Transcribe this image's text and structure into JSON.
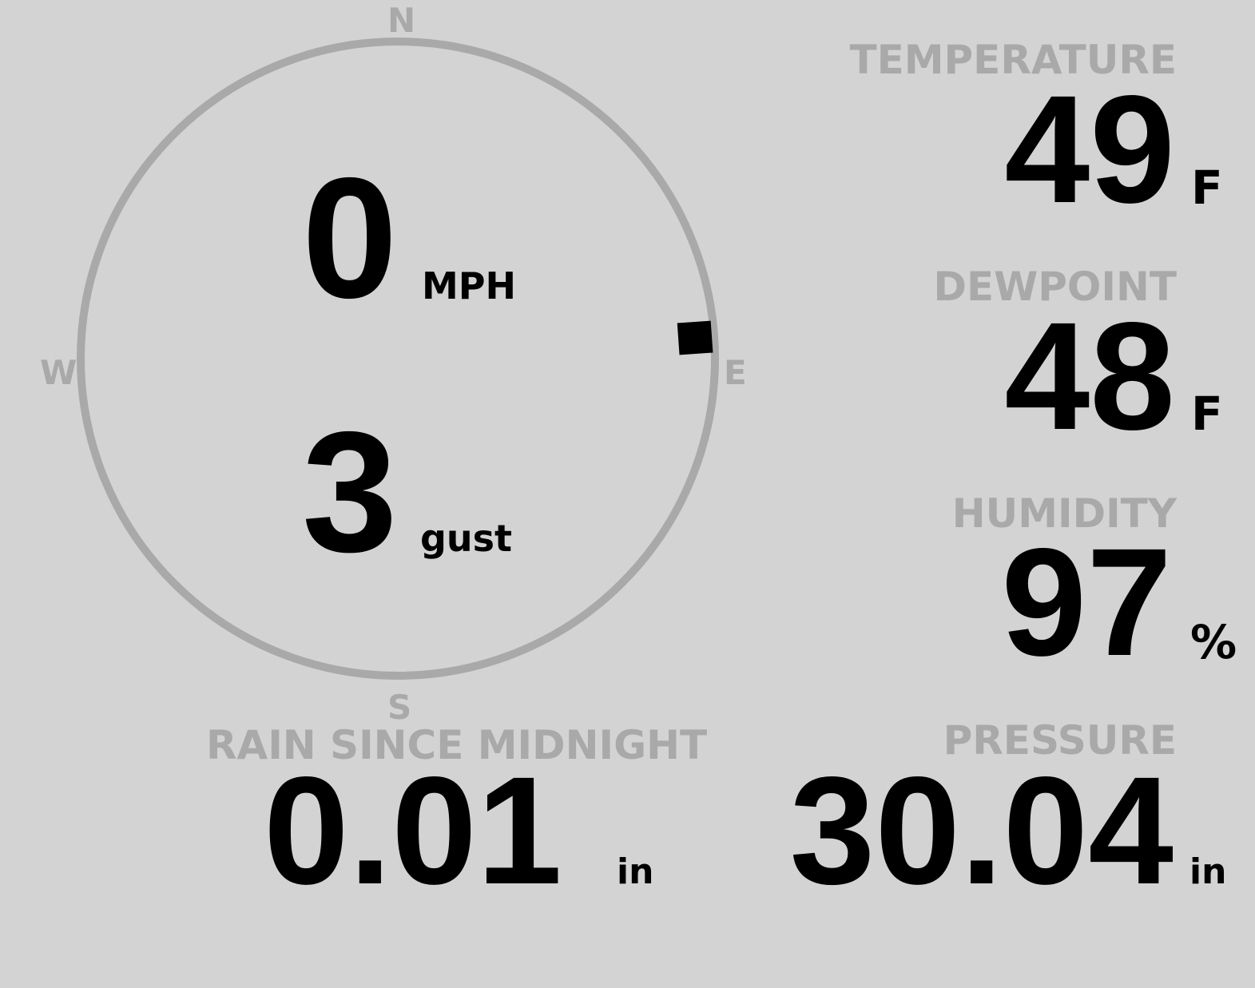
{
  "colors": {
    "background": "#d3d3d3",
    "muted": "#a9a9a9",
    "value": "#000000"
  },
  "wind": {
    "speed": "0",
    "speed_unit": "MPH",
    "gust": "3",
    "gust_label": "gust",
    "direction_degrees": 86,
    "compass": {
      "n": "N",
      "e": "E",
      "s": "S",
      "w": "W"
    }
  },
  "temperature": {
    "label": "TEMPERATURE",
    "value": "49",
    "unit": "F"
  },
  "dewpoint": {
    "label": "DEWPOINT",
    "value": "48",
    "unit": "F"
  },
  "humidity": {
    "label": "HUMIDITY",
    "value": "97",
    "unit": "%"
  },
  "rain": {
    "label": "RAIN SINCE MIDNIGHT",
    "value": "0.01",
    "unit": "in"
  },
  "pressure": {
    "label": "PRESSURE",
    "value": "30.04",
    "unit": "in"
  }
}
